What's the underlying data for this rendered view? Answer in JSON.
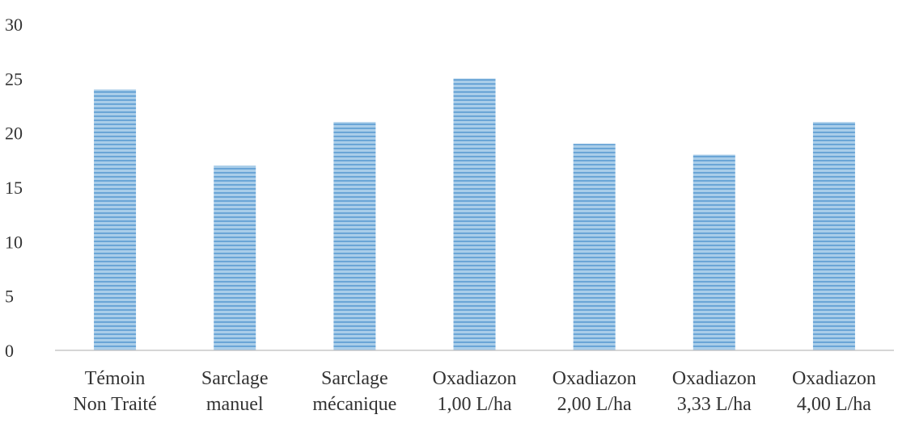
{
  "chart_data": {
    "type": "bar",
    "categories": [
      [
        "Témoin",
        "Non Traité"
      ],
      [
        "Sarclage",
        "manuel"
      ],
      [
        "Sarclage",
        "mécanique"
      ],
      [
        "Oxadiazon",
        "1,00 L/ha"
      ],
      [
        "Oxadiazon",
        "2,00 L/ha"
      ],
      [
        "Oxadiazon",
        "3,33 L/ha"
      ],
      [
        "Oxadiazon",
        "4,00 L/ha"
      ]
    ],
    "values": [
      24,
      17,
      21,
      25,
      19,
      18,
      21
    ],
    "ylim": [
      0,
      30
    ],
    "yticks": [
      "0",
      "5",
      "10",
      "15",
      "20",
      "25",
      "30"
    ],
    "grid": false,
    "legend": "none",
    "colors": {
      "bar_fill": "#a9cde9",
      "bar_stripe": "#6aa5d6",
      "axis": "#c8c8c8",
      "text": "#333333"
    }
  }
}
